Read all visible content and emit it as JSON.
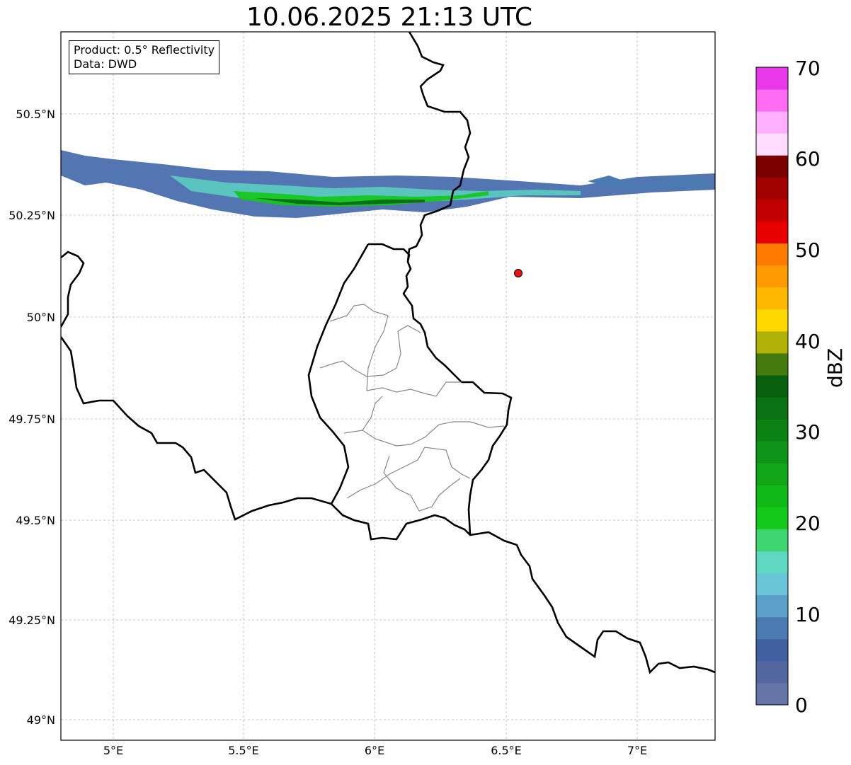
{
  "title": "10.06.2025 21:13 UTC",
  "info": {
    "product": "Product: 0.5° Reflectivity",
    "data": "Data: DWD"
  },
  "axes": {
    "lat_ticks": [
      "50.5°N",
      "50.25°N",
      "50°N",
      "49.75°N",
      "49.5°N",
      "49.25°N",
      "49°N"
    ],
    "lon_ticks": [
      "5°E",
      "5.5°E",
      "6°E",
      "6.5°E",
      "7°E"
    ]
  },
  "colorbar": {
    "label": "dBZ",
    "ticks": [
      "0",
      "10",
      "20",
      "30",
      "40",
      "50",
      "60",
      "70"
    ],
    "colors": [
      "#6675a8",
      "#54669e",
      "#4160a0",
      "#4a7ab0",
      "#5aa0c8",
      "#6ac4d8",
      "#5ed8c0",
      "#3ed670",
      "#12c818",
      "#10b818",
      "#10a618",
      "#0e9418",
      "#0c8214",
      "#0a7212",
      "#08600e",
      "#457a0c",
      "#b0b208",
      "#ffd800",
      "#ffb800",
      "#ff9a00",
      "#ff7a00",
      "#e80000",
      "#c20000",
      "#a00000",
      "#7a0000",
      "#ffdcff",
      "#ffb0ff",
      "#ff6cf4",
      "#e838ea"
    ]
  },
  "marker": {
    "label": "",
    "color": "#ee1111"
  }
}
